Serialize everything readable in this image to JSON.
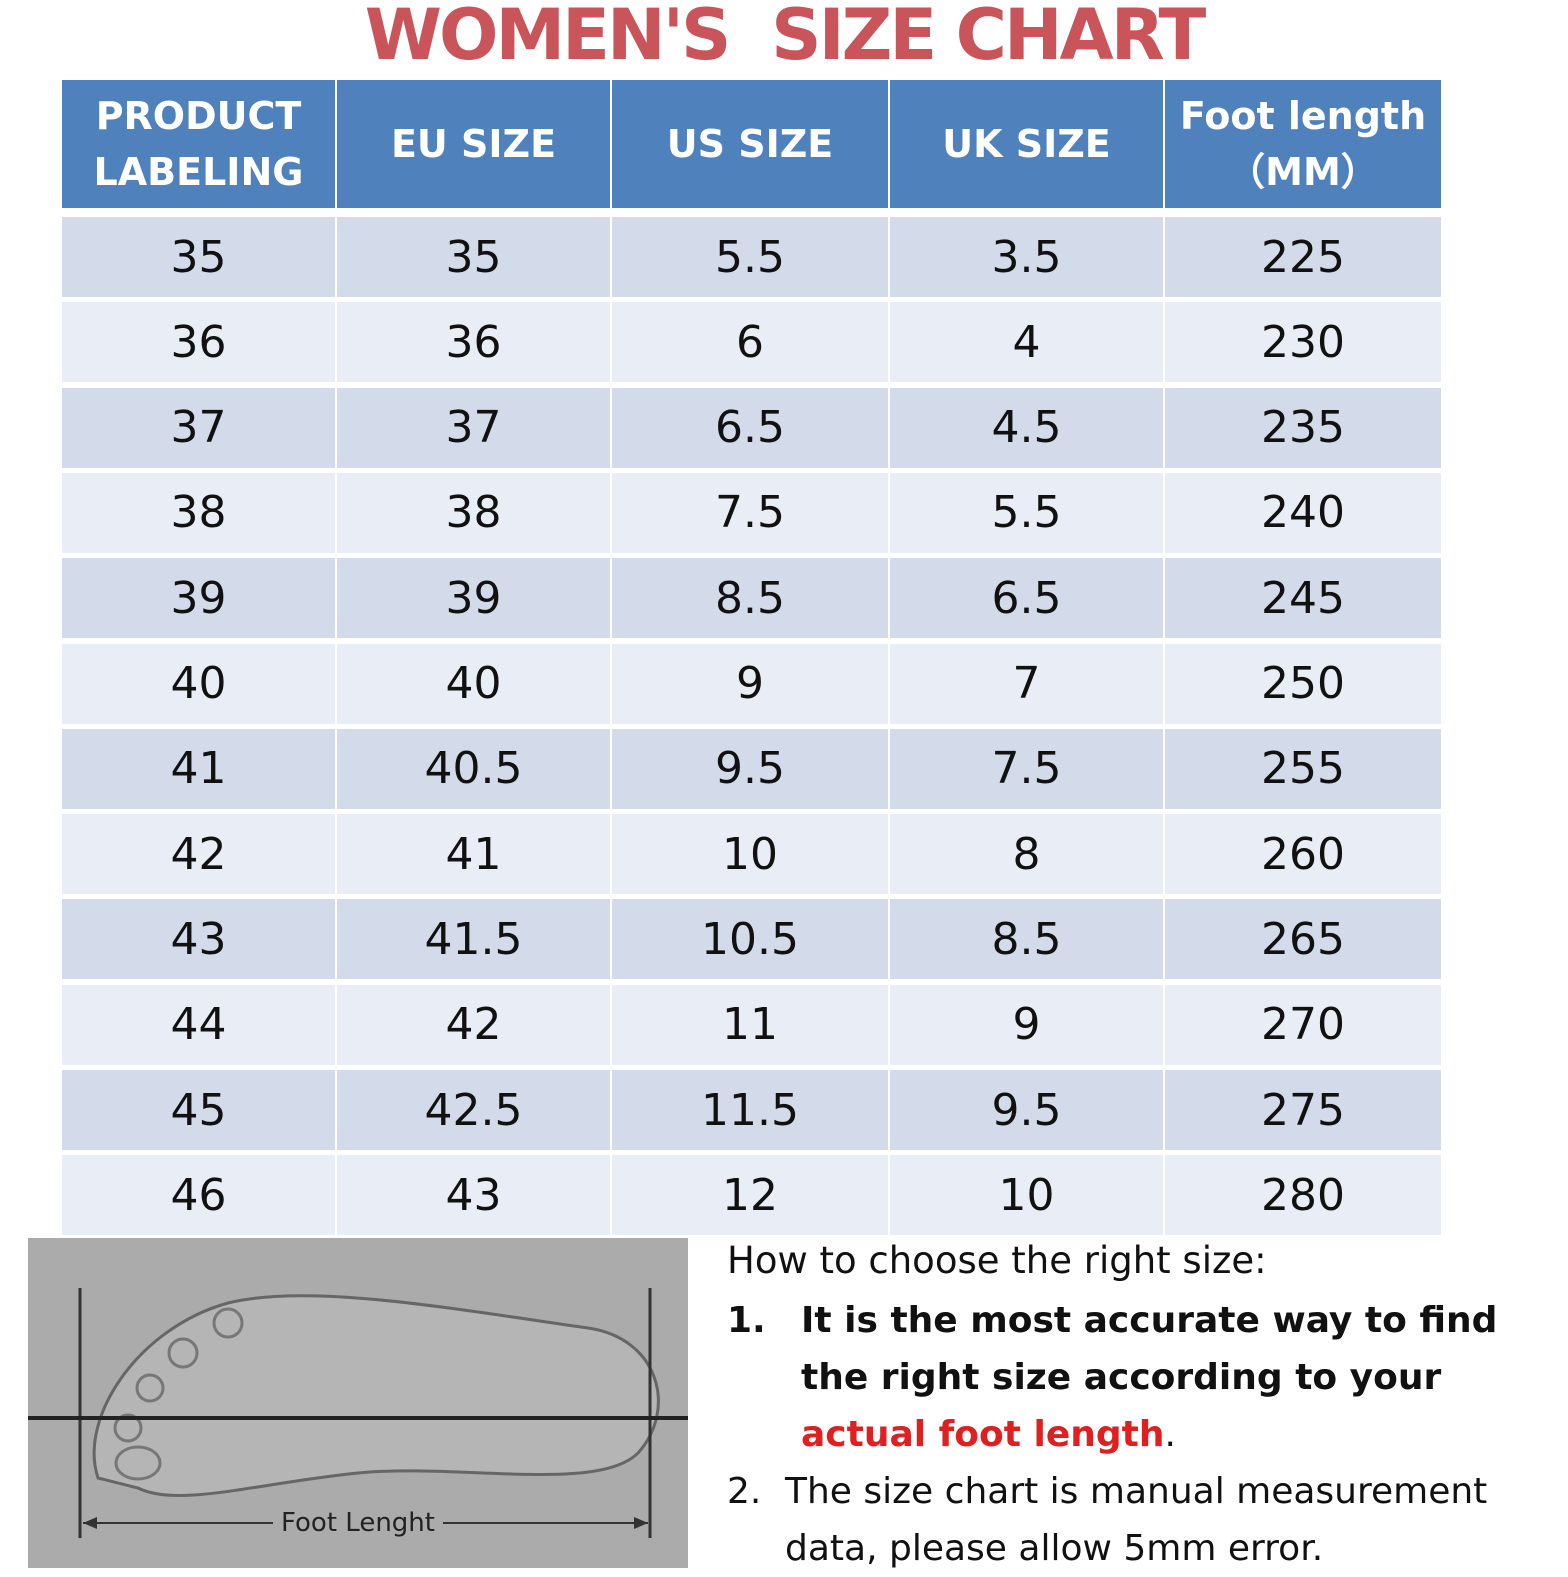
{
  "title": "WOMEN'S  SIZE CHART",
  "table": {
    "header": [
      [
        "PRODUCT",
        "LABELING"
      ],
      [
        "EU SIZE"
      ],
      [
        "US SIZE"
      ],
      [
        "UK SIZE"
      ],
      [
        "Foot length",
        "（MM）"
      ]
    ],
    "rows": [
      [
        "35",
        "35",
        "5.5",
        "3.5",
        "225"
      ],
      [
        "36",
        "36",
        "6",
        "4",
        "230"
      ],
      [
        "37",
        "37",
        "6.5",
        "4.5",
        "235"
      ],
      [
        "38",
        "38",
        "7.5",
        "5.5",
        "240"
      ],
      [
        "39",
        "39",
        "8.5",
        "6.5",
        "245"
      ],
      [
        "40",
        "40",
        "9",
        "7",
        "250"
      ],
      [
        "41",
        "40.5",
        "9.5",
        "7.5",
        "255"
      ],
      [
        "42",
        "41",
        "10",
        "8",
        "260"
      ],
      [
        "43",
        "41.5",
        "10.5",
        "8.5",
        "265"
      ],
      [
        "44",
        "42",
        "11",
        "9",
        "270"
      ],
      [
        "45",
        "42.5",
        "11.5",
        "9.5",
        "275"
      ],
      [
        "46",
        "43",
        "12",
        "10",
        "280"
      ]
    ]
  },
  "figure": {
    "label": "Foot Lenght"
  },
  "instructions": {
    "heading": "How to choose the right size:",
    "items": [
      {
        "number": "1.",
        "text": "It is the most accurate way to find the right size according to your",
        "highlight": "actual foot length",
        "end": "."
      },
      {
        "number": "2.",
        "text": "The size chart is manual measurement data, please allow 5mm error."
      }
    ]
  }
}
